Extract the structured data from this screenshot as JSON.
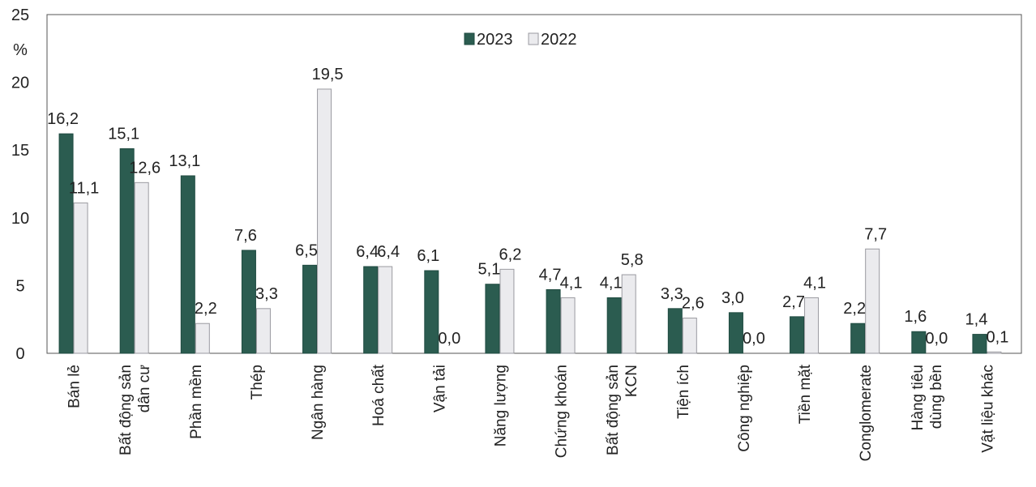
{
  "chart_data": {
    "type": "bar",
    "unit_label": "%",
    "categories": [
      [
        "Bán lẻ"
      ],
      [
        "Bất động sản",
        "dân cư"
      ],
      [
        "Phần mềm"
      ],
      [
        "Thép"
      ],
      [
        "Ngân hàng"
      ],
      [
        "Hoá chất"
      ],
      [
        "Vận tải"
      ],
      [
        "Năng lượng"
      ],
      [
        "Chứng khoán"
      ],
      [
        "Bất động sản",
        "KCN"
      ],
      [
        "Tiện ích"
      ],
      [
        "Công nghiệp"
      ],
      [
        "Tiền mặt"
      ],
      [
        "Conglomerate"
      ],
      [
        "Hàng tiêu",
        "dùng bền"
      ],
      [
        "Vật liệu khác"
      ]
    ],
    "series": [
      {
        "name": "2023",
        "color": "#2b5c50",
        "values": [
          16.2,
          15.1,
          13.1,
          7.6,
          6.5,
          6.4,
          6.1,
          5.1,
          4.7,
          4.1,
          3.3,
          3.0,
          2.7,
          2.2,
          1.6,
          1.4
        ],
        "labels": [
          "16,2",
          "15,1",
          "13,1",
          "7,6",
          "6,5",
          "6,4",
          "6,1",
          "5,1",
          "4,7",
          "4,1",
          "3,3",
          "3,0",
          "2,7",
          "2,2",
          "1,6",
          "1,4"
        ]
      },
      {
        "name": "2022",
        "color": "#ebebee",
        "values": [
          11.1,
          12.6,
          2.2,
          3.3,
          19.5,
          6.4,
          0.0,
          6.2,
          4.1,
          5.8,
          2.6,
          0.0,
          4.1,
          7.7,
          0.0,
          0.1
        ],
        "labels": [
          "11,1",
          "12,6",
          "2,2",
          "3,3",
          "19,5",
          "6,4",
          "0,0",
          "6,2",
          "4,1",
          "5,8",
          "2,6",
          "0,0",
          "4,1",
          "7,7",
          "0,0",
          "0,1"
        ]
      }
    ],
    "yticks": [
      0,
      5,
      10,
      15,
      20,
      25
    ],
    "ylim": [
      0,
      25
    ],
    "legend_position": "top-center",
    "grid": false
  }
}
